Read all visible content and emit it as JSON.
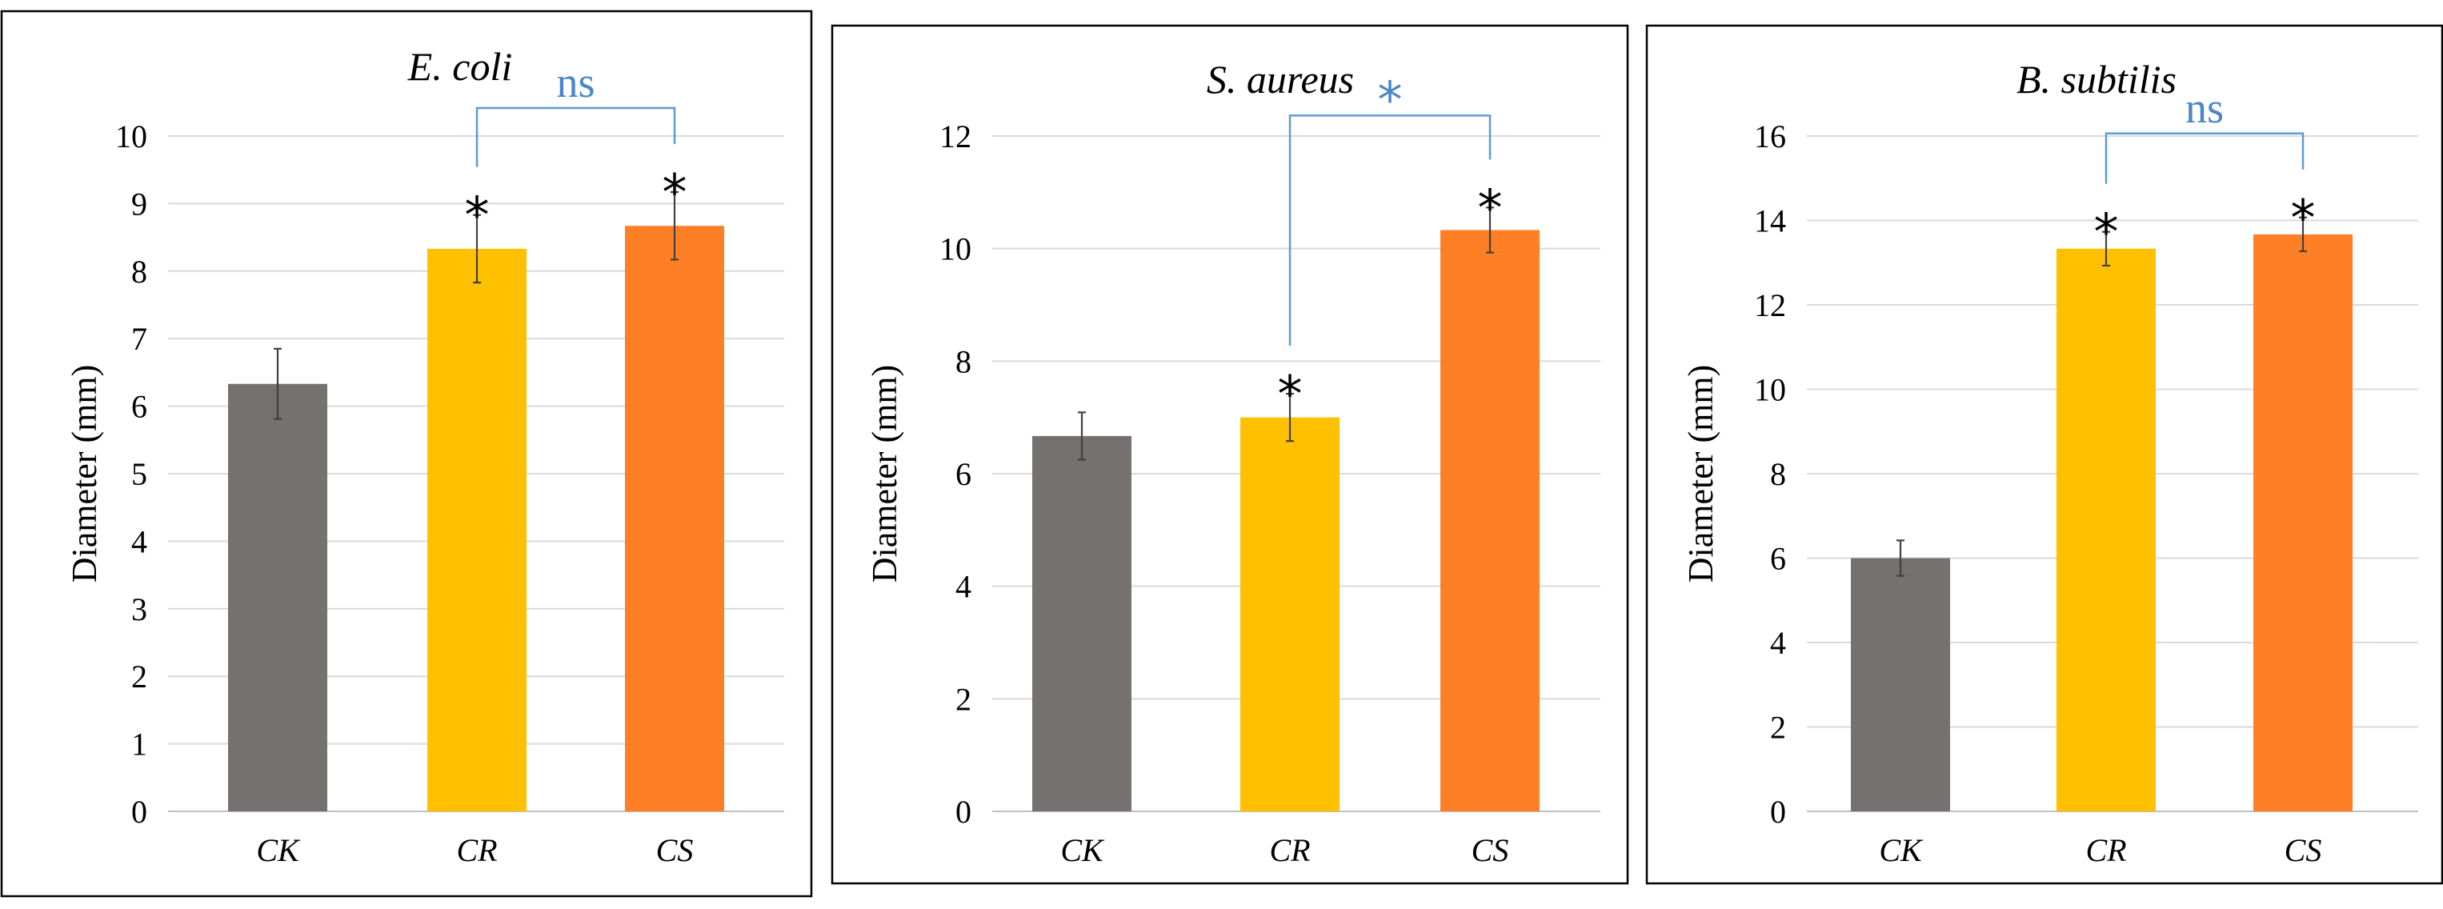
{
  "chart_data": [
    {
      "type": "bar",
      "title": "E. coli",
      "ylabel": "Diameter (mm)",
      "xlabel": "",
      "categories": [
        "CK",
        "CR",
        "CS"
      ],
      "values": [
        6.33,
        8.33,
        8.67
      ],
      "errors": [
        0.52,
        0.5,
        0.5
      ],
      "colors": [
        "#767171",
        "#ffc000",
        "#ff7f27"
      ],
      "ylim": [
        0,
        10
      ],
      "yticks": [
        0,
        1,
        2,
        3,
        4,
        5,
        6,
        7,
        8,
        9,
        10
      ],
      "grid": true,
      "sig_markers": [
        "",
        "*",
        "*"
      ],
      "comparison": {
        "from": "CR",
        "to": "CS",
        "label": "ns"
      }
    },
    {
      "type": "bar",
      "title": "S. aureus",
      "ylabel": "Diameter (mm)",
      "xlabel": "",
      "categories": [
        "CK",
        "CR",
        "CS"
      ],
      "values": [
        6.67,
        7.0,
        10.33
      ],
      "errors": [
        0.42,
        0.42,
        0.4
      ],
      "colors": [
        "#767171",
        "#ffc000",
        "#ff7f27"
      ],
      "ylim": [
        0,
        12
      ],
      "yticks": [
        0,
        2,
        4,
        6,
        8,
        10,
        12
      ],
      "grid": true,
      "sig_markers": [
        "",
        "*",
        "*"
      ],
      "comparison": {
        "from": "CR",
        "to": "CS",
        "label": "*"
      }
    },
    {
      "type": "bar",
      "title": "B. subtilis",
      "ylabel": "Diameter (mm)",
      "xlabel": "",
      "categories": [
        "CK",
        "CR",
        "CS"
      ],
      "values": [
        6.0,
        13.33,
        13.67
      ],
      "errors": [
        0.42,
        0.4,
        0.4
      ],
      "colors": [
        "#767171",
        "#ffc000",
        "#ff7f27"
      ],
      "ylim": [
        0,
        16
      ],
      "yticks": [
        0,
        2,
        4,
        6,
        8,
        10,
        12,
        14,
        16
      ],
      "grid": true,
      "sig_markers": [
        "",
        "*",
        "*"
      ],
      "comparison": {
        "from": "CR",
        "to": "CS",
        "label": "ns"
      }
    }
  ]
}
